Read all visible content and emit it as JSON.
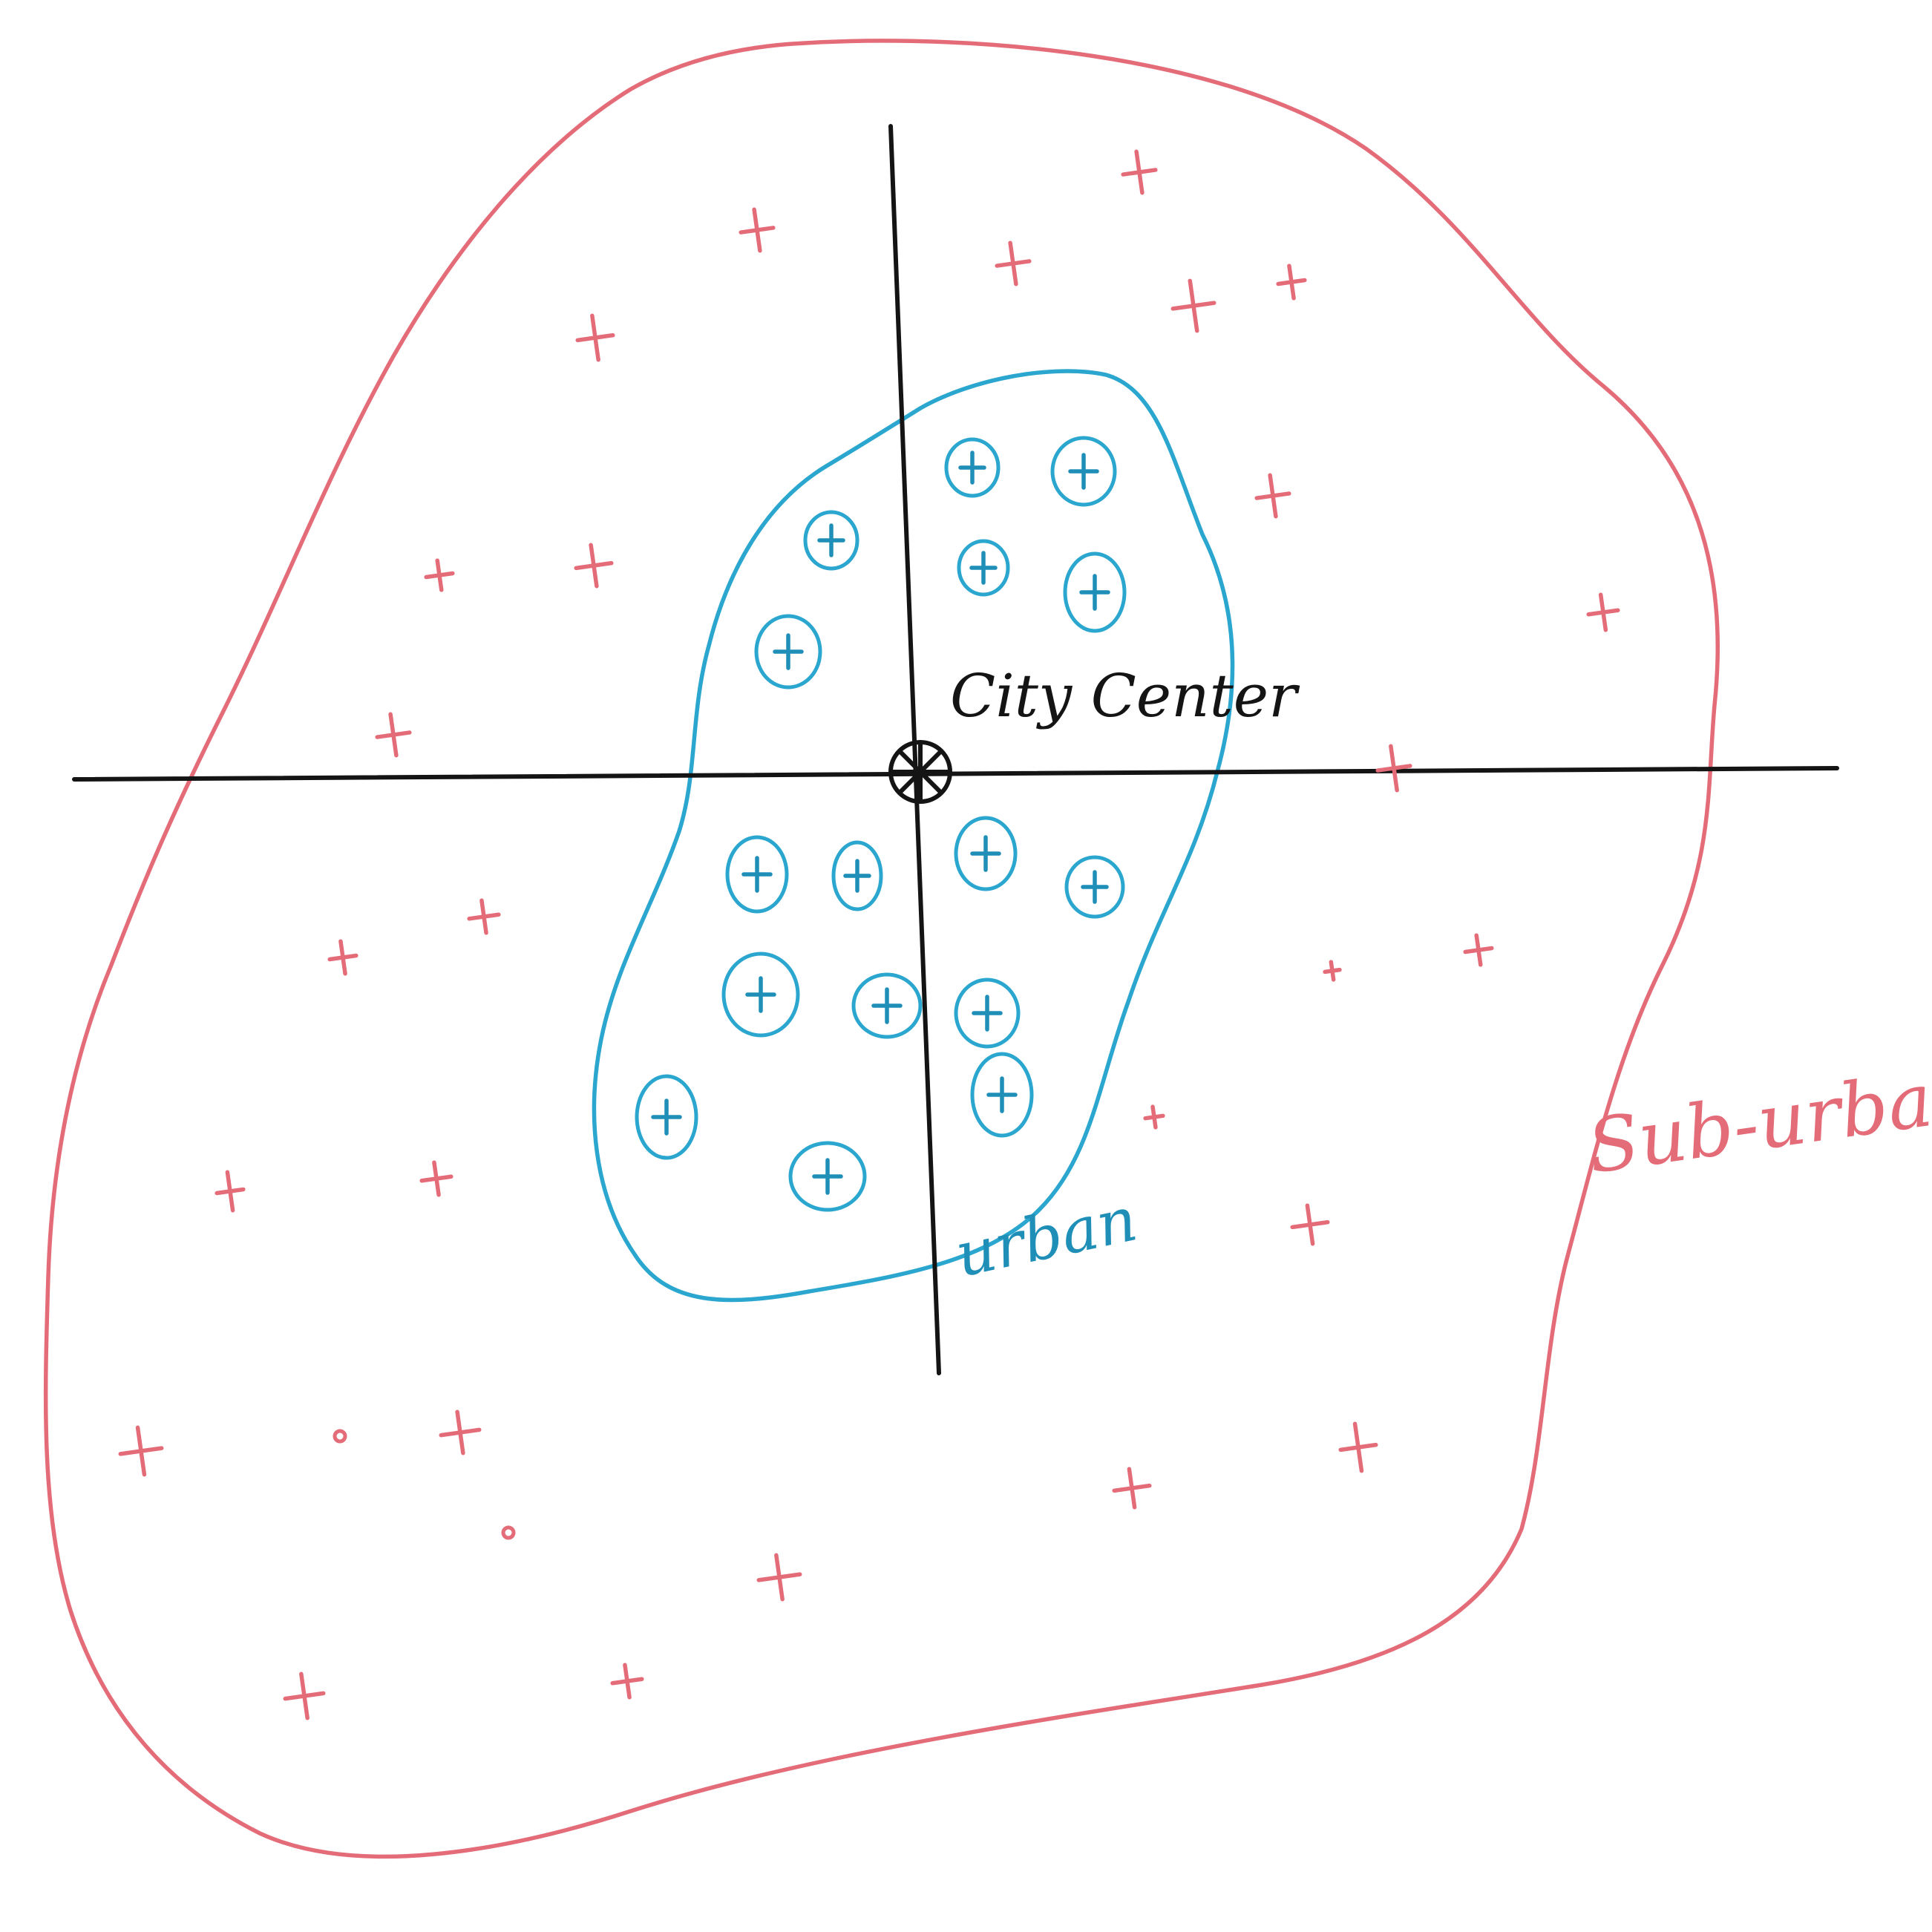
{
  "diagram": {
    "center_label": "City Center",
    "urban_label": "urban",
    "suburban_label": "Sub-urban",
    "colors": {
      "ink": "#141414",
      "urban": "#2aa6cf",
      "urban_mark": "#1f8fb8",
      "suburban": "#e46c78"
    }
  }
}
